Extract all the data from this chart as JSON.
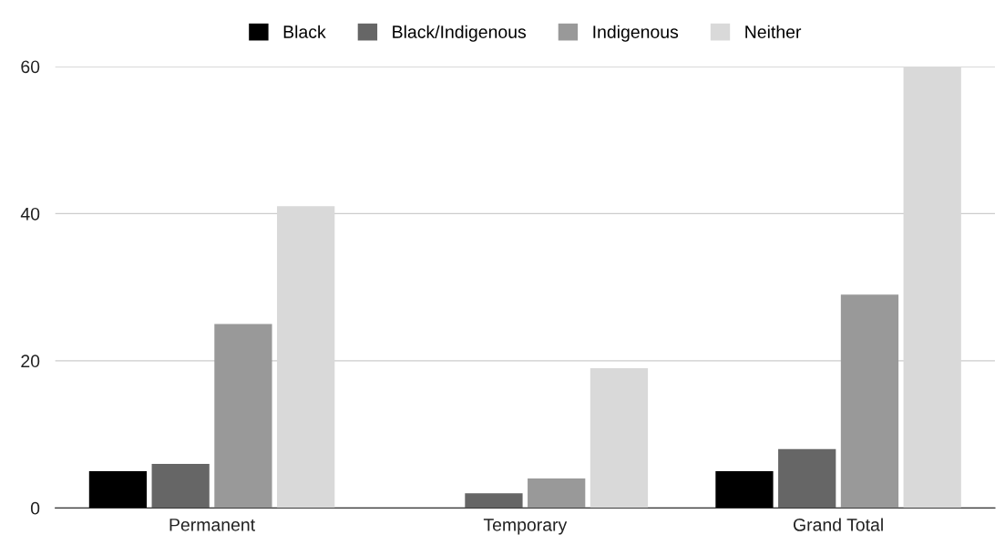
{
  "chart_data": {
    "type": "bar",
    "categories": [
      "Permanent",
      "Temporary",
      "Grand Total"
    ],
    "series": [
      {
        "name": "Black",
        "color": "#000000",
        "values": [
          5,
          null,
          5
        ]
      },
      {
        "name": "Black/Indigenous",
        "color": "#666666",
        "values": [
          6,
          2,
          8
        ]
      },
      {
        "name": "Indigenous",
        "color": "#999999",
        "values": [
          25,
          4,
          29
        ]
      },
      {
        "name": "Neither",
        "color": "#d9d9d9",
        "values": [
          41,
          19,
          60
        ]
      }
    ],
    "ylim": [
      0,
      60
    ],
    "yticks": [
      0,
      20,
      40,
      60
    ],
    "grid": "y",
    "legend": "top"
  }
}
